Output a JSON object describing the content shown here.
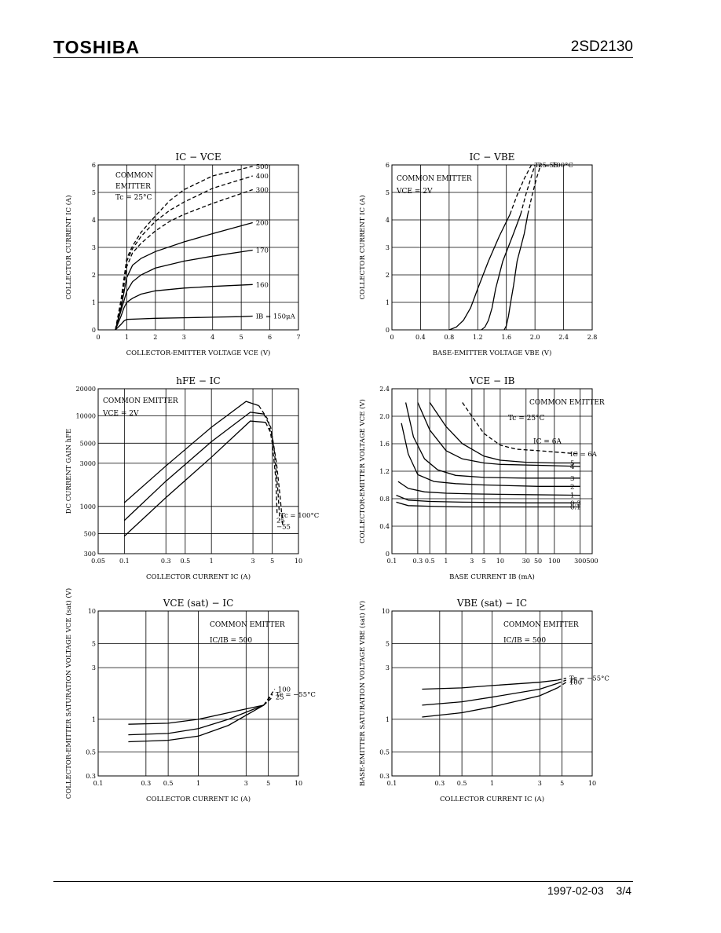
{
  "header": {
    "brand": "TOSHIBA",
    "part_number": "2SD2130"
  },
  "footer": {
    "date": "1997-02-03",
    "page": "3/4"
  },
  "chart_data": [
    {
      "id": "ic_vce",
      "type": "line",
      "title": "IC − VCE",
      "xlabel": "COLLECTOR-EMITTER VOLTAGE   VCE   (V)",
      "ylabel": "COLLECTOR CURRENT   IC   (A)",
      "xscale": "linear",
      "yscale": "linear",
      "xlim": [
        0,
        7
      ],
      "ylim": [
        0,
        6
      ],
      "xticks": [
        0,
        1,
        2,
        3,
        4,
        5,
        6,
        7
      ],
      "xtick_labels": [
        "0",
        "1",
        "2",
        "3",
        "4",
        "5",
        "6",
        "7"
      ],
      "yticks": [
        0,
        1,
        2,
        3,
        4,
        5,
        6
      ],
      "ytick_labels": [
        "0",
        "1",
        "2",
        "3",
        "4",
        "5",
        "6"
      ],
      "annotations": [
        "COMMON",
        "EMITTER",
        "Tc = 25°C"
      ],
      "series": [
        {
          "name": "IB = 150μA",
          "dashed": false,
          "label": "IB = 150μA",
          "x": [
            0.6,
            0.8,
            0.9,
            1,
            1.5,
            2,
            3,
            4,
            5,
            5.4
          ],
          "y": [
            0,
            0.2,
            0.32,
            0.38,
            0.4,
            0.42,
            0.44,
            0.46,
            0.48,
            0.5
          ]
        },
        {
          "name": "160",
          "dashed": false,
          "label": "160",
          "x": [
            0.6,
            0.8,
            0.9,
            1,
            1.2,
            1.5,
            2,
            3,
            4,
            5.4
          ],
          "y": [
            0,
            0.5,
            0.8,
            1,
            1.15,
            1.3,
            1.42,
            1.52,
            1.58,
            1.65
          ]
        },
        {
          "name": "170",
          "dashed": false,
          "label": "170",
          "x": [
            0.6,
            0.8,
            1,
            1.2,
            1.5,
            2,
            3,
            4,
            5.4
          ],
          "y": [
            0,
            0.7,
            1.4,
            1.75,
            2.0,
            2.25,
            2.5,
            2.68,
            2.9
          ]
        },
        {
          "name": "200",
          "dashed": false,
          "label": "200",
          "x": [
            0.6,
            0.8,
            1,
            1.2,
            1.5,
            2,
            3,
            4,
            5.4
          ],
          "y": [
            0,
            0.8,
            1.9,
            2.35,
            2.6,
            2.85,
            3.2,
            3.5,
            3.9
          ]
        },
        {
          "name": "300",
          "dashed": true,
          "label": "300",
          "x": [
            0.6,
            0.8,
            1,
            1.2,
            1.5,
            2,
            2.5,
            3,
            4,
            5.4
          ],
          "y": [
            0,
            0.9,
            2.3,
            2.8,
            3.15,
            3.6,
            3.95,
            4.2,
            4.6,
            5.1
          ]
        },
        {
          "name": "400",
          "dashed": true,
          "label": "400",
          "x": [
            0.6,
            0.8,
            1,
            1.2,
            1.5,
            2,
            2.5,
            3,
            4,
            5.4
          ],
          "y": [
            0,
            1.0,
            2.5,
            2.95,
            3.4,
            3.95,
            4.35,
            4.65,
            5.15,
            5.6
          ]
        },
        {
          "name": "500",
          "dashed": true,
          "label": "500",
          "x": [
            0.6,
            0.8,
            1,
            1.2,
            1.5,
            2,
            2.5,
            3,
            4,
            5.4
          ],
          "y": [
            0,
            1.1,
            2.6,
            3.05,
            3.55,
            4.15,
            4.7,
            5.1,
            5.6,
            5.95
          ]
        }
      ]
    },
    {
      "id": "ic_vbe",
      "type": "line",
      "title": "IC − VBE",
      "xlabel": "BASE-EMITTER VOLTAGE   VBE   (V)",
      "ylabel": "COLLECTOR CURRENT   IC   (A)",
      "xscale": "linear",
      "yscale": "linear",
      "xlim": [
        0,
        2.8
      ],
      "ylim": [
        0,
        6
      ],
      "xticks": [
        0,
        0.4,
        0.8,
        1.2,
        1.6,
        2.0,
        2.4,
        2.8
      ],
      "xtick_labels": [
        "0",
        "0.4",
        "0.8",
        "1.2",
        "1.6",
        "2.0",
        "2.4",
        "2.8"
      ],
      "yticks": [
        0,
        1,
        2,
        3,
        4,
        5,
        6
      ],
      "ytick_labels": [
        "0",
        "1",
        "2",
        "3",
        "4",
        "5",
        "6"
      ],
      "annotations": [
        "COMMON EMITTER",
        "VCE = 2V"
      ],
      "curve_labels": [
        "Tc = 100°C",
        "25",
        "−55"
      ],
      "series": [
        {
          "name": "Tc = 100°C",
          "x": [
            0.8,
            0.9,
            1.0,
            1.1,
            1.2,
            1.35,
            1.5,
            1.65
          ],
          "y": [
            0,
            0.1,
            0.35,
            0.8,
            1.5,
            2.5,
            3.4,
            4.2
          ],
          "dashed_x": [
            1.65,
            1.75,
            1.85,
            1.95
          ],
          "dashed_y": [
            4.2,
            4.9,
            5.5,
            6.0
          ]
        },
        {
          "name": "25",
          "x": [
            1.25,
            1.3,
            1.35,
            1.4,
            1.45,
            1.55,
            1.7,
            1.8
          ],
          "y": [
            0,
            0.1,
            0.35,
            0.8,
            1.5,
            2.5,
            3.5,
            4.2
          ],
          "dashed_x": [
            1.8,
            1.87,
            1.94,
            2.0
          ],
          "dashed_y": [
            4.2,
            4.9,
            5.5,
            6.0
          ]
        },
        {
          "name": "−55",
          "x": [
            1.57,
            1.6,
            1.63,
            1.66,
            1.7,
            1.75,
            1.85,
            1.9
          ],
          "y": [
            0,
            0.15,
            0.5,
            1.0,
            1.6,
            2.5,
            3.5,
            4.2
          ],
          "dashed_x": [
            1.9,
            1.96,
            2.02,
            2.08
          ],
          "dashed_y": [
            4.2,
            4.9,
            5.5,
            6.0
          ]
        }
      ]
    },
    {
      "id": "hfe_ic",
      "type": "line",
      "title": "hFE − IC",
      "xlabel": "COLLECTOR CURRENT   IC   (A)",
      "ylabel": "DC CURRENT GAIN   hFE",
      "xscale": "log",
      "yscale": "log",
      "xlim": [
        0.05,
        10
      ],
      "ylim": [
        300,
        20000
      ],
      "xticks": [
        0.05,
        0.1,
        0.3,
        0.5,
        1,
        3,
        5,
        10
      ],
      "xtick_labels": [
        "0.05",
        "0.1",
        "0.3",
        "0.5",
        "1",
        "3",
        "5",
        "10"
      ],
      "yticks": [
        300,
        500,
        1000,
        3000,
        5000,
        10000,
        20000
      ],
      "ytick_labels": [
        "300",
        "500",
        "1000",
        "3000",
        "5000",
        "10000",
        "20000"
      ],
      "annotations": [
        "COMMON EMITTER",
        "VCE = 2V"
      ],
      "curve_labels": [
        "Tc = 100°C",
        "25",
        "−55"
      ],
      "series": [
        {
          "name": "Tc = 100°C",
          "x": [
            0.1,
            0.3,
            1,
            2.5,
            3.5
          ],
          "y": [
            1100,
            2800,
            7500,
            14500,
            13000
          ],
          "dashed_x": [
            3.5,
            4.5,
            5,
            5.5,
            5.7
          ],
          "dashed_y": [
            13000,
            9000,
            5000,
            2000,
            800
          ]
        },
        {
          "name": "25",
          "x": [
            0.1,
            0.3,
            1,
            2.8,
            4
          ],
          "y": [
            700,
            1900,
            5200,
            11000,
            10500
          ],
          "dashed_x": [
            4,
            4.8,
            5.3,
            5.8,
            6.1
          ],
          "dashed_y": [
            10500,
            7500,
            4000,
            1500,
            700
          ]
        },
        {
          "name": "−55",
          "x": [
            0.1,
            0.3,
            1,
            2.8,
            4.2
          ],
          "y": [
            470,
            1250,
            3500,
            8800,
            8500
          ],
          "dashed_x": [
            4.2,
            5,
            5.6,
            6.2,
            6.6
          ],
          "dashed_y": [
            8500,
            6000,
            3000,
            1200,
            600
          ]
        }
      ]
    },
    {
      "id": "vce_ib",
      "type": "line",
      "title": "VCE − IB",
      "xlabel": "BASE CURRENT   IB   (mA)",
      "ylabel": "COLLECTOR-EMITTER VOLTAGE   VCE   (V)",
      "xscale": "log",
      "yscale": "linear",
      "xlim": [
        0.1,
        500
      ],
      "ylim": [
        0,
        2.4
      ],
      "xticks": [
        0.1,
        0.3,
        0.5,
        1,
        3,
        5,
        10,
        30,
        50,
        100,
        300,
        500
      ],
      "xtick_labels": [
        "0.1",
        "0.3",
        "0.5",
        "1",
        "3",
        "5",
        "10",
        "30",
        "50",
        "100",
        "300",
        "500"
      ],
      "yticks": [
        0,
        0.4,
        0.8,
        1.2,
        1.6,
        2.0,
        2.4
      ],
      "ytick_labels": [
        "0",
        "0.4",
        "0.8",
        "1.2",
        "1.6",
        "2.0",
        "2.4"
      ],
      "annotations": [
        "COMMON EMITTER",
        "Tc = 25°C",
        "IC = 6A"
      ],
      "curve_labels": [
        "6A",
        "5",
        "4",
        "3",
        "2",
        "1",
        "0.3",
        "0.1"
      ],
      "series": [
        {
          "name": "IC = 6A",
          "dashed": true,
          "x": [
            2,
            3,
            5,
            10,
            20,
            50,
            100,
            300
          ],
          "y": [
            2.2,
            2.0,
            1.75,
            1.58,
            1.52,
            1.5,
            1.48,
            1.45
          ]
        },
        {
          "name": "5",
          "dashed": false,
          "x": [
            0.5,
            1,
            2,
            5,
            10,
            30,
            100,
            300
          ],
          "y": [
            2.2,
            1.85,
            1.6,
            1.42,
            1.36,
            1.33,
            1.32,
            1.32
          ]
        },
        {
          "name": "4",
          "dashed": false,
          "x": [
            0.3,
            0.5,
            1,
            2,
            5,
            10,
            100,
            300
          ],
          "y": [
            2.2,
            1.8,
            1.5,
            1.38,
            1.32,
            1.3,
            1.28,
            1.27
          ]
        },
        {
          "name": "3",
          "dashed": false,
          "x": [
            0.18,
            0.25,
            0.4,
            0.7,
            1.5,
            5,
            30,
            300
          ],
          "y": [
            2.2,
            1.7,
            1.38,
            1.22,
            1.14,
            1.11,
            1.1,
            1.1
          ]
        },
        {
          "name": "2",
          "dashed": false,
          "x": [
            0.15,
            0.2,
            0.3,
            0.6,
            1.5,
            5,
            50,
            300
          ],
          "y": [
            1.9,
            1.45,
            1.15,
            1.05,
            1.02,
            1.0,
            0.98,
            0.98
          ]
        },
        {
          "name": "1",
          "dashed": false,
          "x": [
            0.13,
            0.2,
            0.4,
            1,
            3,
            30,
            300
          ],
          "y": [
            1.05,
            0.95,
            0.9,
            0.88,
            0.87,
            0.86,
            0.85
          ]
        },
        {
          "name": "0.3",
          "dashed": false,
          "x": [
            0.12,
            0.2,
            0.5,
            2,
            30,
            300
          ],
          "y": [
            0.85,
            0.78,
            0.76,
            0.75,
            0.74,
            0.74
          ]
        },
        {
          "name": "0.1",
          "dashed": false,
          "x": [
            0.12,
            0.2,
            0.5,
            2,
            30,
            300
          ],
          "y": [
            0.75,
            0.7,
            0.69,
            0.68,
            0.68,
            0.68
          ]
        }
      ]
    },
    {
      "id": "vcesat_ic",
      "type": "line",
      "title": "VCE (sat) − IC",
      "xlabel": "COLLECTOR CURRENT   IC   (A)",
      "ylabel": "COLLECTOR-EMITTER SATURATION VOLTAGE   VCE (sat)   (V)",
      "xscale": "log",
      "yscale": "log",
      "xlim": [
        0.1,
        10
      ],
      "ylim": [
        0.3,
        10
      ],
      "xticks": [
        0.1,
        0.3,
        0.5,
        1,
        3,
        5,
        10
      ],
      "xtick_labels": [
        "0.1",
        "0.3",
        "0.5",
        "1",
        "3",
        "5",
        "10"
      ],
      "yticks": [
        0.3,
        0.5,
        1,
        3,
        5,
        10
      ],
      "ytick_labels": [
        "0.3",
        "0.5",
        "1",
        "3",
        "5",
        "10"
      ],
      "annotations": [
        "COMMON EMITTER",
        "IC/IB = 500"
      ],
      "curve_labels": [
        "Tc = −55°C",
        "25",
        "100"
      ],
      "series": [
        {
          "name": "Tc = −55°C",
          "x": [
            0.2,
            0.5,
            1,
            2,
            4.5
          ],
          "y": [
            0.9,
            0.92,
            1.0,
            1.15,
            1.35
          ],
          "dashed_x": [
            4.5,
            5.5
          ],
          "dashed_y": [
            1.35,
            1.7
          ]
        },
        {
          "name": "25",
          "x": [
            0.2,
            0.5,
            1,
            2,
            4.5
          ],
          "y": [
            0.72,
            0.74,
            0.82,
            1.0,
            1.35
          ],
          "dashed_x": [
            4.5,
            5.5
          ],
          "dashed_y": [
            1.35,
            1.6
          ]
        },
        {
          "name": "100",
          "x": [
            0.2,
            0.5,
            1,
            2,
            4.5
          ],
          "y": [
            0.62,
            0.64,
            0.7,
            0.88,
            1.35
          ],
          "dashed_x": [
            4.5,
            5.8
          ],
          "dashed_y": [
            1.35,
            1.9
          ]
        }
      ]
    },
    {
      "id": "vbesat_ic",
      "type": "line",
      "title": "VBE (sat) − IC",
      "xlabel": "COLLECTOR CURRENT   IC   (A)",
      "ylabel": "BASE-EMITTER SATURATION VOLTAGE   VBE (sat)   (V)",
      "xscale": "log",
      "yscale": "log",
      "xlim": [
        0.1,
        10
      ],
      "ylim": [
        0.3,
        10
      ],
      "xticks": [
        0.1,
        0.3,
        0.5,
        1,
        3,
        5,
        10
      ],
      "xtick_labels": [
        "0.1",
        "0.3",
        "0.5",
        "1",
        "3",
        "5",
        "10"
      ],
      "yticks": [
        0.3,
        0.5,
        1,
        3,
        5,
        10
      ],
      "ytick_labels": [
        "0.3",
        "0.5",
        "1",
        "3",
        "5",
        "10"
      ],
      "annotations": [
        "COMMON EMITTER",
        "IC/IB = 500"
      ],
      "curve_labels": [
        "Tc = −55°C",
        "25",
        "100"
      ],
      "series": [
        {
          "name": "Tc = −55°C",
          "x": [
            0.2,
            0.5,
            1,
            3,
            4.5
          ],
          "y": [
            1.9,
            1.95,
            2.05,
            2.2,
            2.3
          ],
          "dashed_x": [
            4.5,
            5.5
          ],
          "dashed_y": [
            2.3,
            2.4
          ]
        },
        {
          "name": "25",
          "x": [
            0.2,
            0.5,
            1,
            3,
            4.5
          ],
          "y": [
            1.35,
            1.45,
            1.6,
            1.9,
            2.15
          ],
          "dashed_x": [
            4.5,
            5.5
          ],
          "dashed_y": [
            2.15,
            2.3
          ]
        },
        {
          "name": "100",
          "x": [
            0.2,
            0.5,
            1,
            3,
            4.5
          ],
          "y": [
            1.05,
            1.15,
            1.3,
            1.65,
            1.95
          ],
          "dashed_x": [
            4.5,
            5.5
          ],
          "dashed_y": [
            1.95,
            2.2
          ]
        }
      ]
    }
  ]
}
